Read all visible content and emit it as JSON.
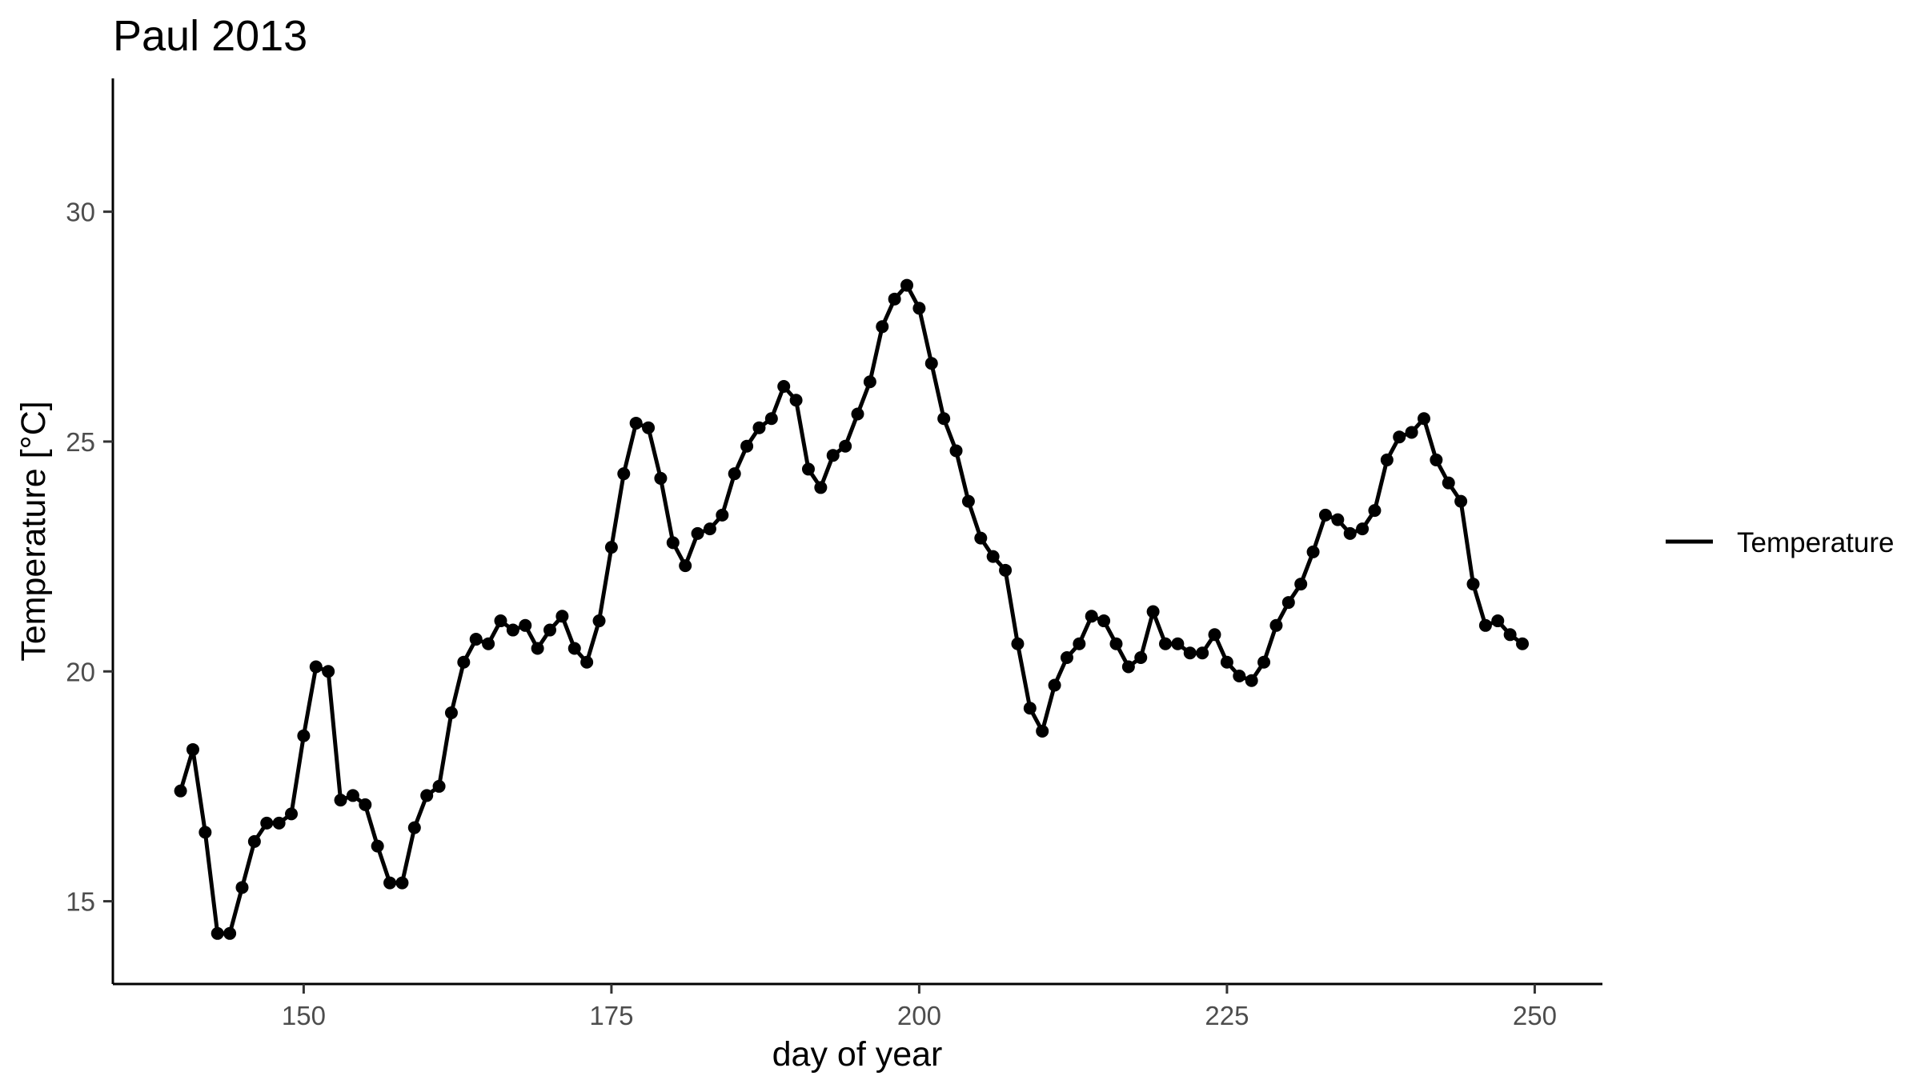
{
  "chart_data": {
    "type": "line",
    "title": "Paul 2013",
    "xlabel": "day of year",
    "ylabel": "Temperature [°C]",
    "xlim": [
      134.5,
      255.5
    ],
    "ylim": [
      13.2,
      32.9
    ],
    "x_ticks": [
      150,
      175,
      200,
      225,
      250
    ],
    "y_ticks": [
      15,
      20,
      25,
      30
    ],
    "grid": false,
    "legend_position": "right",
    "series": [
      {
        "name": "Temperature",
        "color": "#000000",
        "markers": true,
        "x": [
          140,
          141,
          142,
          143,
          144,
          145,
          146,
          147,
          148,
          149,
          150,
          151,
          152,
          153,
          154,
          155,
          156,
          157,
          158,
          159,
          160,
          161,
          162,
          163,
          164,
          165,
          166,
          167,
          168,
          169,
          170,
          171,
          172,
          173,
          174,
          175,
          176,
          177,
          178,
          179,
          180,
          181,
          182,
          183,
          184,
          185,
          186,
          187,
          188,
          189,
          190,
          191,
          192,
          193,
          194,
          195,
          196,
          197,
          198,
          199,
          200,
          201,
          202,
          203,
          204,
          205,
          206,
          207,
          208,
          209,
          210,
          211,
          212,
          213,
          214,
          215,
          216,
          217,
          218,
          219,
          220,
          221,
          222,
          223,
          224,
          225,
          226,
          227,
          228,
          229,
          230,
          231,
          232,
          233,
          234,
          235,
          236,
          237,
          238,
          239,
          240,
          241,
          242,
          243,
          244,
          245,
          246,
          247,
          248,
          249
        ],
        "values": [
          17.4,
          18.3,
          16.5,
          14.3,
          14.3,
          15.3,
          16.3,
          16.7,
          16.7,
          16.9,
          18.6,
          20.1,
          20.0,
          17.2,
          17.3,
          17.1,
          16.2,
          15.4,
          15.4,
          16.6,
          17.3,
          17.5,
          19.1,
          20.2,
          20.7,
          20.6,
          21.1,
          20.9,
          21.0,
          20.5,
          20.9,
          21.2,
          20.5,
          20.2,
          21.1,
          22.7,
          24.3,
          25.4,
          25.3,
          24.2,
          22.8,
          22.3,
          23.0,
          23.1,
          23.4,
          24.3,
          24.9,
          25.3,
          25.5,
          26.2,
          25.9,
          24.4,
          24.0,
          24.7,
          24.9,
          25.6,
          26.3,
          27.5,
          28.1,
          28.4,
          27.9,
          26.7,
          25.5,
          24.8,
          23.7,
          22.9,
          22.5,
          22.2,
          20.6,
          19.2,
          18.7,
          19.7,
          20.3,
          20.6,
          21.2,
          21.1,
          20.6,
          20.1,
          20.3,
          21.3,
          20.6,
          20.6,
          20.4,
          20.4,
          20.8,
          20.2,
          19.9,
          19.8,
          20.2,
          21.0,
          21.5,
          21.9,
          22.6,
          23.4,
          23.3,
          23.0,
          23.1,
          23.5,
          24.6,
          25.1,
          25.2,
          25.5,
          24.6,
          24.1,
          23.7,
          21.9,
          21.0,
          21.1,
          20.8,
          20.6
        ]
      }
    ]
  }
}
